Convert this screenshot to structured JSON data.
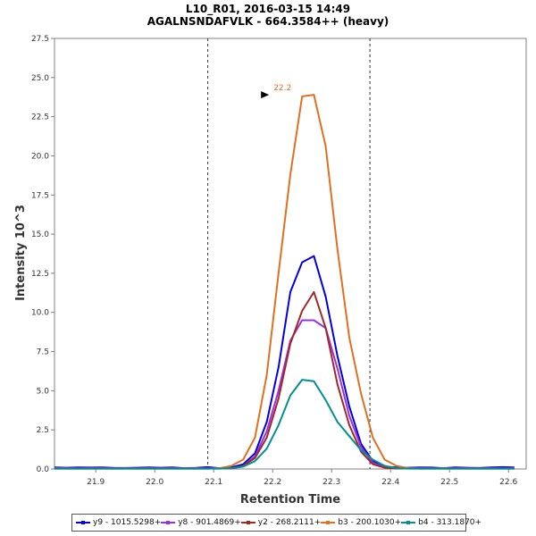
{
  "chart_data": {
    "type": "line",
    "title": "L10_R01, 2016-03-15 14:49",
    "subtitle": "AGALNSNDAFVLK - 664.3584++ (heavy)",
    "xlabel": "Retention Time",
    "ylabel": "Intensity 10^3",
    "xlim": [
      21.83,
      22.63
    ],
    "ylim": [
      0,
      27.5
    ],
    "x_ticks": [
      "21.9",
      "22.0",
      "22.1",
      "22.2",
      "22.3",
      "22.4",
      "22.5",
      "22.6"
    ],
    "y_ticks": [
      "0.0",
      "2.5",
      "5.0",
      "7.5",
      "10.0",
      "12.5",
      "15.0",
      "17.5",
      "20.0",
      "22.5",
      "25.0",
      "27.5"
    ],
    "boundaries": [
      22.09,
      22.365
    ],
    "peak_annotation": {
      "label": "22.2",
      "x": 22.2,
      "y": 23.9
    },
    "x": [
      21.83,
      21.85,
      21.87,
      21.89,
      21.91,
      21.93,
      21.95,
      21.97,
      21.99,
      22.01,
      22.03,
      22.05,
      22.07,
      22.09,
      22.11,
      22.13,
      22.15,
      22.17,
      22.19,
      22.21,
      22.23,
      22.25,
      22.27,
      22.29,
      22.31,
      22.33,
      22.35,
      22.37,
      22.39,
      22.41,
      22.43,
      22.45,
      22.47,
      22.49,
      22.51,
      22.53,
      22.55,
      22.57,
      22.59,
      22.61
    ],
    "series": [
      {
        "name": "y9 - 1015.5298+",
        "color": "#0000e0",
        "values": [
          0.1,
          0.08,
          0.1,
          0.09,
          0.1,
          0.07,
          0.06,
          0.08,
          0.1,
          0.08,
          0.1,
          0.05,
          0.07,
          0.12,
          0.05,
          0.1,
          0.3,
          1.0,
          3.0,
          6.5,
          11.3,
          13.2,
          13.6,
          11.0,
          7.2,
          4.0,
          1.6,
          0.5,
          0.15,
          0.1,
          0.08,
          0.1,
          0.09,
          0.05,
          0.1,
          0.08,
          0.06,
          0.1,
          0.12,
          0.1
        ]
      },
      {
        "name": "y8 - 901.4869+",
        "color": "#9b30e0",
        "values": [
          0.05,
          0.05,
          0.04,
          0.05,
          0.05,
          0.04,
          0.05,
          0.04,
          0.05,
          0.04,
          0.05,
          0.04,
          0.05,
          0.04,
          0.05,
          0.04,
          0.2,
          0.8,
          2.4,
          5.0,
          8.2,
          9.5,
          9.5,
          9.0,
          6.4,
          3.4,
          1.4,
          0.4,
          0.1,
          0.05,
          0.04,
          0.05,
          0.04,
          0.05,
          0.04,
          0.05,
          0.04,
          0.05,
          0.04,
          0.05
        ]
      },
      {
        "name": "y2 - 268.2111+",
        "color": "#a02828",
        "values": [
          0.03,
          0.03,
          0.03,
          0.03,
          0.03,
          0.03,
          0.03,
          0.03,
          0.03,
          0.03,
          0.03,
          0.03,
          0.03,
          0.03,
          0.03,
          0.03,
          0.2,
          0.7,
          2.0,
          4.5,
          8.0,
          10.1,
          11.3,
          9.0,
          5.4,
          2.8,
          1.1,
          0.3,
          0.08,
          0.03,
          0.03,
          0.03,
          0.03,
          0.03,
          0.03,
          0.03,
          0.03,
          0.03,
          0.03,
          0.03
        ]
      },
      {
        "name": "b3 - 200.1030+",
        "color": "#e07020",
        "values": [
          0.02,
          0.02,
          0.02,
          0.02,
          0.02,
          0.02,
          0.02,
          0.02,
          0.02,
          0.02,
          0.02,
          0.02,
          0.02,
          0.02,
          0.05,
          0.2,
          0.6,
          2.0,
          6.0,
          12.5,
          18.8,
          23.8,
          23.9,
          20.6,
          14.0,
          8.4,
          4.8,
          2.0,
          0.6,
          0.2,
          0.05,
          0.02,
          0.02,
          0.02,
          0.02,
          0.02,
          0.02,
          0.02,
          0.02,
          0.02
        ]
      },
      {
        "name": "b4 - 313.1870+",
        "color": "#009090",
        "values": [
          0.02,
          0.02,
          0.02,
          0.02,
          0.02,
          0.02,
          0.02,
          0.02,
          0.02,
          0.02,
          0.02,
          0.02,
          0.02,
          0.02,
          0.02,
          0.05,
          0.15,
          0.5,
          1.3,
          2.8,
          4.7,
          5.7,
          5.6,
          4.4,
          3.0,
          2.1,
          1.2,
          0.6,
          0.2,
          0.05,
          0.02,
          0.02,
          0.02,
          0.02,
          0.02,
          0.02,
          0.02,
          0.02,
          0.02,
          0.02
        ]
      }
    ]
  }
}
